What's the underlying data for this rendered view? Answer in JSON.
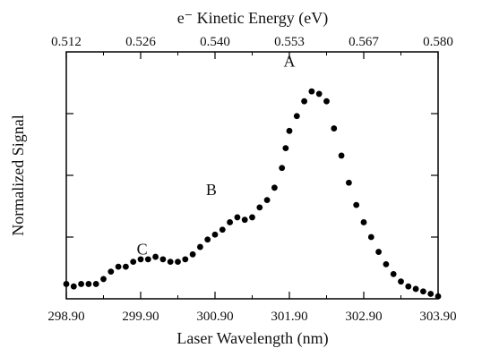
{
  "chart_data": {
    "type": "scatter",
    "title": "",
    "xlabel": "Laser Wavelength (nm)",
    "ylabel": "Normalized Signal",
    "top_xlabel": "e⁻ Kinetic Energy (eV)",
    "xlim": [
      298.9,
      303.9
    ],
    "x_ticks": [
      "298.90",
      "299.90",
      "300.90",
      "301.90",
      "302.90",
      "303.90"
    ],
    "top_ticks": [
      "0.512",
      "0.526",
      "0.540",
      "0.553",
      "0.567",
      "0.580"
    ],
    "ylim": [
      0,
      1
    ],
    "grid": false,
    "annotations": [
      {
        "label": "A",
        "x": 301.9,
        "y": 0.94
      },
      {
        "label": "B",
        "x": 300.85,
        "y": 0.42
      },
      {
        "label": "C",
        "x": 299.92,
        "y": 0.18
      }
    ],
    "series": [
      {
        "color": "#000000",
        "x": [
          298.9,
          299.0,
          299.1,
          299.2,
          299.3,
          299.4,
          299.5,
          299.6,
          299.7,
          299.8,
          299.9,
          300.0,
          300.1,
          300.2,
          300.3,
          300.4,
          300.5,
          300.6,
          300.7,
          300.8,
          300.9,
          301.0,
          301.1,
          301.2,
          301.3,
          301.4,
          301.5,
          301.6,
          301.7,
          301.8,
          301.85,
          301.9,
          302.0,
          302.1,
          302.2,
          302.3,
          302.4,
          302.5,
          302.6,
          302.7,
          302.8,
          302.9,
          303.0,
          303.1,
          303.2,
          303.3,
          303.4,
          303.5,
          303.6,
          303.7,
          303.8,
          303.9
        ],
        "y": [
          0.06,
          0.05,
          0.06,
          0.06,
          0.06,
          0.08,
          0.11,
          0.13,
          0.13,
          0.15,
          0.16,
          0.16,
          0.17,
          0.16,
          0.15,
          0.15,
          0.16,
          0.18,
          0.21,
          0.24,
          0.26,
          0.28,
          0.31,
          0.33,
          0.32,
          0.33,
          0.37,
          0.4,
          0.45,
          0.53,
          0.61,
          0.68,
          0.74,
          0.8,
          0.84,
          0.83,
          0.8,
          0.69,
          0.58,
          0.47,
          0.38,
          0.31,
          0.25,
          0.19,
          0.14,
          0.1,
          0.07,
          0.05,
          0.04,
          0.03,
          0.02,
          0.01
        ]
      }
    ]
  }
}
